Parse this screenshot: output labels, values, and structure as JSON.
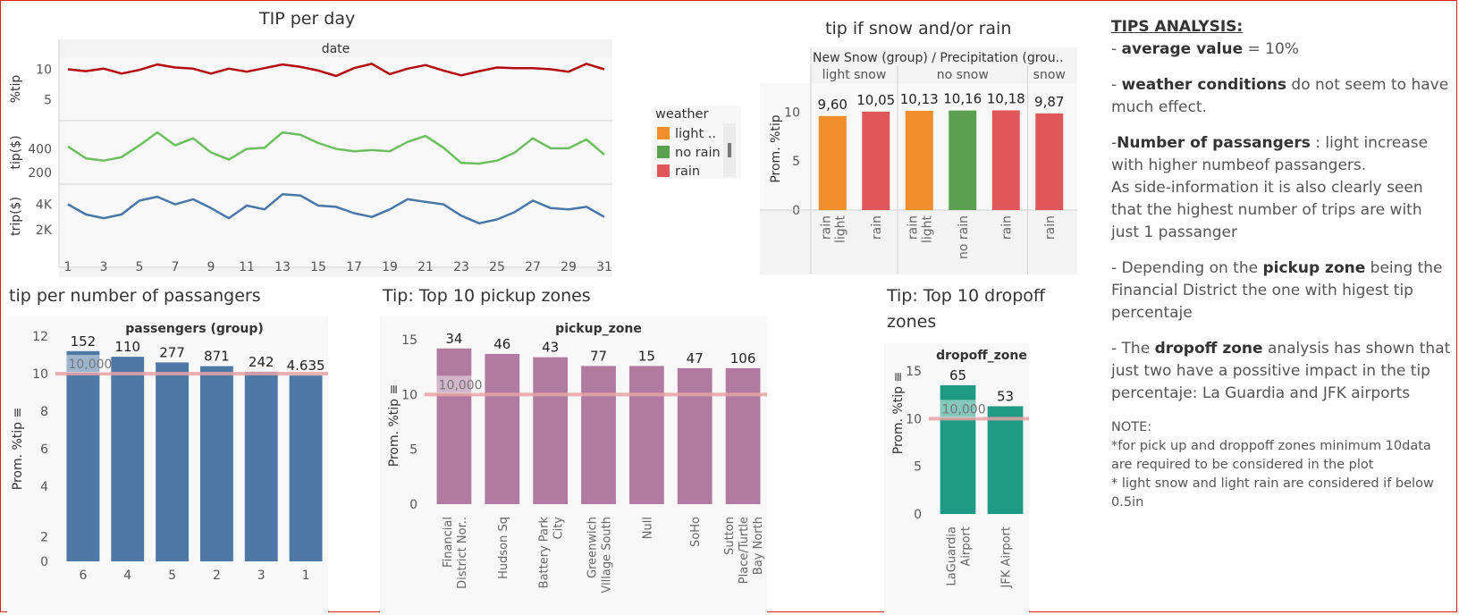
{
  "titles": {
    "tip_per_day": "TIP per day",
    "weather": "tip if snow and/or rain",
    "passengers": "tip per number of passangers",
    "pickup": "Tip: Top 10 pickup zones",
    "dropoff_line1": "Tip: Top 10 dropoff",
    "dropoff_line2": "zones"
  },
  "colors": {
    "red": "#b30a0f",
    "green": "#6cbf5f",
    "blue": "#4877a8",
    "orange": "#f28e2b",
    "legend_green": "#59a14f",
    "rain_red": "#e15759",
    "bar_blue": "#4e79a7",
    "bar_purple": "#b07aa1",
    "bar_teal": "#1f9a84",
    "ref_line": "#e7a3a6"
  },
  "legend": {
    "title": "weather",
    "items": [
      {
        "label": "light ..",
        "color": "#f28e2b"
      },
      {
        "label": "no rain",
        "color": "#59a14f"
      },
      {
        "label": "rain",
        "color": "#e15759"
      }
    ]
  },
  "notes": {
    "heading": "TIPS ANALYSIS:",
    "p1_bold": "average value",
    "p1_rest": " = 10%",
    "p2_bold": "weather conditions",
    "p2_rest": " do not seem to have much effect.",
    "p3_pre": "-",
    "p3_bold": "Number of passangers",
    "p3_rest": " : light increase with higher numbeof passangers.",
    "p3_extra": "As side-information it is also clearly seen that the highest number of trips are with just 1 passanger",
    "p4_pre": "- Depending on the ",
    "p4_bold": "pickup zone",
    "p4_rest": " being the Financial District the one with higest tip percentaje",
    "p5_pre": "- The ",
    "p5_bold": "dropoff zone",
    "p5_rest": " analysis has shown that just two have a possitive impact in the tip percentaje: La Guardia and JFK airports",
    "note_head": "NOTE:",
    "note1": "*for pick up and droppoff zones minimum 10data are required to be considered in the plot",
    "note2": "* light snow and light rain are considered if below 0.5in"
  },
  "chart_data": [
    {
      "id": "tip_per_day",
      "type": "line",
      "title": "TIP per day",
      "xlabel": "date",
      "x": [
        1,
        2,
        3,
        4,
        5,
        6,
        7,
        8,
        9,
        10,
        11,
        12,
        13,
        14,
        15,
        16,
        17,
        18,
        19,
        20,
        21,
        22,
        23,
        24,
        25,
        26,
        27,
        28,
        29,
        30,
        31
      ],
      "x_ticks": [
        "1",
        "3",
        "5",
        "7",
        "9",
        "11",
        "13",
        "15",
        "17",
        "19",
        "21",
        "23",
        "25",
        "27",
        "29",
        "31"
      ],
      "series": [
        {
          "ylabel": "%tip",
          "color": "#b30a0f",
          "ylim": [
            1.5,
            12
          ],
          "yticks": [
            "5",
            "10"
          ],
          "ytick_values": [
            5,
            10
          ],
          "values": [
            10.0,
            9.7,
            10.1,
            9.3,
            9.9,
            10.8,
            10.3,
            10.1,
            9.3,
            10.1,
            9.6,
            10.2,
            10.8,
            10.4,
            9.8,
            8.9,
            10.2,
            10.9,
            9.2,
            10.1,
            10.7,
            9.8,
            9.0,
            9.7,
            10.3,
            10.2,
            10.2,
            10.0,
            9.6,
            10.9,
            10.0
          ]
        },
        {
          "ylabel": "tip($)",
          "color": "#6cbf5f",
          "ylim": [
            100,
            640
          ],
          "yticks": [
            "200",
            "400"
          ],
          "ytick_values": [
            200,
            400
          ],
          "values": [
            420,
            320,
            300,
            330,
            430,
            540,
            430,
            490,
            370,
            310,
            400,
            410,
            540,
            520,
            450,
            400,
            380,
            390,
            380,
            460,
            510,
            410,
            280,
            275,
            300,
            370,
            490,
            405,
            405,
            480,
            350
          ]
        },
        {
          "ylabel": "trip($)",
          "color": "#4877a8",
          "ylim": [
            500,
            5600
          ],
          "yticks": [
            "2K",
            "4K"
          ],
          "ytick_values": [
            2000,
            4000
          ],
          "values": [
            4000,
            3200,
            2900,
            3200,
            4300,
            4600,
            4000,
            4400,
            3700,
            2900,
            3900,
            3600,
            4800,
            4700,
            3900,
            3800,
            3300,
            3000,
            3600,
            4400,
            4200,
            4000,
            3100,
            2500,
            2800,
            3400,
            4300,
            3700,
            3600,
            3800,
            3000
          ]
        }
      ]
    },
    {
      "id": "weather",
      "type": "bar",
      "title": "tip if snow and/or rain",
      "header": "New Snow (group)  / Precipitation (grou..",
      "ylabel": "Prom. %tip",
      "ylim": [
        0,
        12.5
      ],
      "yticks": [
        "0",
        "5",
        "10"
      ],
      "ytick_values": [
        0,
        5,
        10
      ],
      "groups": [
        {
          "name": "light snow",
          "bars": [
            {
              "category": "light\nrain",
              "value": 9.6,
              "label": "9,60",
              "color": "#f28e2b"
            },
            {
              "category": "rain",
              "value": 10.05,
              "label": "10,05",
              "color": "#e15759"
            }
          ]
        },
        {
          "name": "no snow",
          "bars": [
            {
              "category": "light\nrain",
              "value": 10.13,
              "label": "10,13",
              "color": "#f28e2b"
            },
            {
              "category": "no rain",
              "value": 10.16,
              "label": "10,16",
              "color": "#59a14f"
            },
            {
              "category": "rain",
              "value": 10.18,
              "label": "10,18",
              "color": "#e15759"
            }
          ]
        },
        {
          "name": "snow",
          "bars": [
            {
              "category": "rain",
              "value": 9.87,
              "label": "9,87",
              "color": "#e15759"
            }
          ]
        }
      ]
    },
    {
      "id": "passengers",
      "type": "bar",
      "title": "tip per number of passangers",
      "xlabel": "passengers (group)",
      "ylabel": "Prom. %tip",
      "ylim": [
        0,
        12
      ],
      "yticks": [
        "0",
        "2",
        "4",
        "6",
        "8",
        "10",
        "12"
      ],
      "ytick_values": [
        0,
        2,
        4,
        6,
        8,
        10,
        12
      ],
      "ytick_positions": [
        0,
        1.3,
        4,
        6,
        8,
        10,
        12
      ],
      "categories": [
        "6",
        "4",
        "5",
        "2",
        "3",
        "1"
      ],
      "values": [
        11.2,
        10.9,
        10.6,
        10.4,
        10.1,
        9.9
      ],
      "labels": [
        "152",
        "110",
        "277",
        "871",
        "242",
        "4.635"
      ],
      "reference_line": {
        "value": 10,
        "label": "10,000"
      }
    },
    {
      "id": "pickup",
      "type": "bar",
      "title": "Tip: Top 10 pickup zones",
      "xlabel": "pickup_zone",
      "ylabel": "Prom. %tip",
      "ylim": [
        0,
        15
      ],
      "yticks": [
        "0",
        "5",
        "10",
        "15"
      ],
      "ytick_values": [
        0,
        5,
        10,
        15
      ],
      "categories": [
        "Financial\nDistrict Nor..",
        "Hudson Sq",
        "Battery Park\nCity",
        "Greenwich\nVillage South",
        "Null",
        "SoHo",
        "Sutton\nPlace/Turtle\nBay North"
      ],
      "values": [
        14.2,
        13.7,
        13.4,
        12.6,
        12.6,
        12.4,
        12.4
      ],
      "labels": [
        "34",
        "46",
        "43",
        "77",
        "15",
        "47",
        "106"
      ],
      "reference_line": {
        "value": 10,
        "label": "10,000"
      }
    },
    {
      "id": "dropoff",
      "type": "bar",
      "title": "Tip: Top 10 dropoff zones",
      "xlabel": "dropoff_zone",
      "ylabel": "Prom. %tip",
      "ylim": [
        0,
        15
      ],
      "yticks": [
        "0",
        "5",
        "10",
        "15"
      ],
      "ytick_values": [
        0,
        5,
        10,
        15
      ],
      "categories": [
        "LaGuardia\nAirport",
        "JFK Airport"
      ],
      "values": [
        13.5,
        11.3
      ],
      "labels": [
        "65",
        "53"
      ],
      "reference_line": {
        "value": 10,
        "label": "10,000"
      }
    }
  ]
}
